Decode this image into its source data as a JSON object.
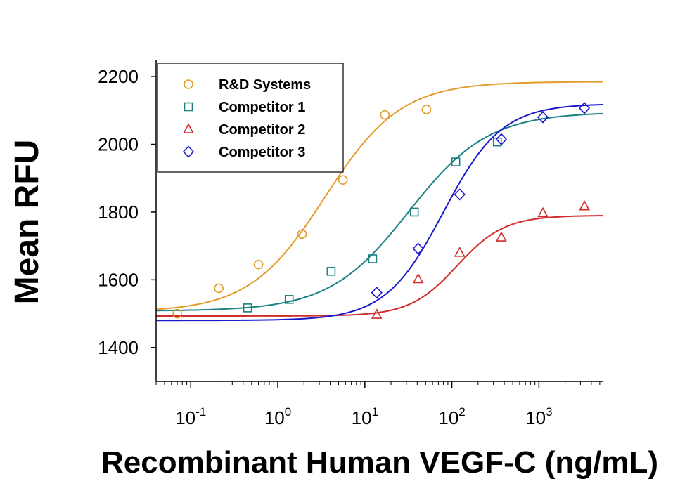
{
  "chart_data": {
    "type": "scatter",
    "xlabel": "Recombinant Human VEGF-C (ng/mL)",
    "ylabel": "Mean RFU",
    "x_scale": "log",
    "xlim": [
      0.04,
      5500
    ],
    "ylim": [
      1300,
      2250
    ],
    "yticks": [
      1400,
      1600,
      1800,
      2000,
      2200
    ],
    "xticks": [
      {
        "value": 0.1,
        "base": "10",
        "exp": "-1"
      },
      {
        "value": 1,
        "base": "10",
        "exp": "0"
      },
      {
        "value": 10,
        "base": "10",
        "exp": "1"
      },
      {
        "value": 100,
        "base": "10",
        "exp": "2"
      },
      {
        "value": 1000,
        "base": "10",
        "exp": "3"
      }
    ],
    "legend_position": "top-left",
    "series": [
      {
        "name": "R&D Systems",
        "marker": "circle",
        "color": "#E39B2A",
        "points": [
          [
            0.07,
            1500
          ],
          [
            0.21,
            1575
          ],
          [
            0.6,
            1645
          ],
          [
            1.9,
            1735
          ],
          [
            5.6,
            1895
          ],
          [
            17,
            2087
          ],
          [
            51,
            2103
          ]
        ],
        "fit": {
          "bottom": 1505,
          "top": 2185,
          "ec50": 3.5,
          "hill": 1.0
        }
      },
      {
        "name": "Competitor 1",
        "marker": "square",
        "color": "#1A8080",
        "points": [
          [
            0.45,
            1517
          ],
          [
            1.35,
            1542
          ],
          [
            4.1,
            1625
          ],
          [
            12.3,
            1662
          ],
          [
            37,
            1800
          ],
          [
            111,
            1948
          ],
          [
            333,
            2007
          ]
        ],
        "fit": {
          "bottom": 1508,
          "top": 2095,
          "ec50": 32,
          "hill": 0.95
        }
      },
      {
        "name": "Competitor 2",
        "marker": "triangle",
        "color": "#D12A2A",
        "points": [
          [
            13.7,
            1497
          ],
          [
            41,
            1602
          ],
          [
            123,
            1680
          ],
          [
            370,
            1725
          ],
          [
            1111,
            1797
          ],
          [
            3333,
            1817
          ]
        ],
        "fit": {
          "bottom": 1493,
          "top": 1790,
          "ec50": 115,
          "hill": 1.6
        }
      },
      {
        "name": "Competitor 3",
        "marker": "diamond",
        "color": "#1A1ACC",
        "points": [
          [
            13.7,
            1562
          ],
          [
            41,
            1692
          ],
          [
            123,
            1852
          ],
          [
            370,
            2015
          ],
          [
            1111,
            2080
          ],
          [
            3333,
            2107
          ]
        ],
        "fit": {
          "bottom": 1480,
          "top": 2120,
          "ec50": 80,
          "hill": 1.3
        }
      }
    ]
  }
}
